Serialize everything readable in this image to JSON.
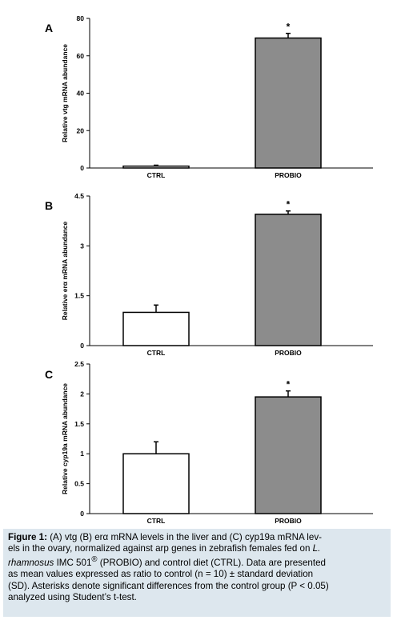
{
  "chart_data": [
    {
      "type": "bar",
      "panel_label": "A",
      "categories": [
        "CTRL",
        "PROBIO"
      ],
      "values": [
        1,
        69.5
      ],
      "errors": [
        0.5,
        2.5
      ],
      "significance": [
        "",
        "*"
      ],
      "ylabel": "Relative vtg mRNA abundance",
      "ylim": [
        0,
        80
      ],
      "yticks": [
        0,
        20,
        40,
        60,
        80
      ],
      "ytick_labels": [
        "0",
        "20",
        "40",
        "60",
        "80"
      ],
      "colors": [
        "#ffffff",
        "#8c8c8c"
      ]
    },
    {
      "type": "bar",
      "panel_label": "B",
      "categories": [
        "CTRL",
        "PROBIO"
      ],
      "values": [
        1,
        3.95
      ],
      "errors": [
        0.22,
        0.1
      ],
      "significance": [
        "",
        "*"
      ],
      "ylabel": "Relative erα mRNA abundance",
      "ylim": [
        0,
        4.5
      ],
      "yticks": [
        0,
        1.5,
        3,
        4.5
      ],
      "ytick_labels": [
        "0",
        "1.5",
        "3",
        "4.5"
      ],
      "colors": [
        "#ffffff",
        "#8c8c8c"
      ]
    },
    {
      "type": "bar",
      "panel_label": "C",
      "categories": [
        "CTRL",
        "PROBIO"
      ],
      "values": [
        1,
        1.95
      ],
      "errors": [
        0.2,
        0.1
      ],
      "significance": [
        "",
        "*"
      ],
      "ylabel": "Relative cyp19a mRNA abundance",
      "ylim": [
        0,
        2.5
      ],
      "yticks": [
        0,
        0.5,
        1,
        1.5,
        2,
        2.5
      ],
      "ytick_labels": [
        "0",
        "0.5",
        "1",
        "1.5",
        "2",
        "2.5"
      ],
      "colors": [
        "#ffffff",
        "#8c8c8c"
      ]
    }
  ],
  "caption": {
    "label": "Figure 1:",
    "line1": " (A) vtg (B) erα mRNA levels in the liver and (C) cyp19a mRNA lev-",
    "line2_pre": "els in the ovary, normalized against arp genes in zebrafish females fed on ",
    "line2_italic": "L.",
    "line3_italic": "rhamnosus",
    "line3_a": " IMC 501",
    "line3_sup": "®",
    "line3_b": " (PROBIO) and control diet (CTRL). Data are presented",
    "line4": "as mean values expressed as ratio to control (n = 10) ± standard deviation",
    "line5": "(SD). Asterisks denote significant differences from the control group (P < 0.05)",
    "line6": "analyzed using Student’s t-test."
  }
}
